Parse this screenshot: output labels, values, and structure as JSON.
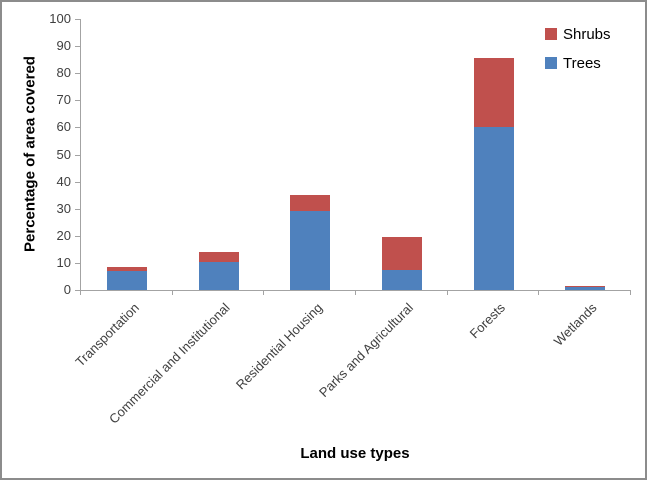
{
  "chart_data": {
    "type": "bar",
    "stacked": true,
    "title": "",
    "categories": [
      "Transportation",
      "Commercial and Institutional",
      "Residential Housing",
      "Parks and Agricultural",
      "Forests",
      "Wetlands"
    ],
    "series": [
      {
        "name": "Trees",
        "color": "#4F81BD",
        "values": [
          7,
          10.5,
          29,
          7.5,
          60,
          1.2
        ]
      },
      {
        "name": "Shrubs",
        "color": "#C0504D",
        "values": [
          1.5,
          3.5,
          6,
          12,
          25.5,
          0.3
        ]
      }
    ],
    "xlabel": "Land use types",
    "ylabel": "Percentage of area covered",
    "ylim": [
      0,
      100
    ],
    "ytick_step": 10,
    "ytick_labels": [
      "0",
      "10",
      "20",
      "30",
      "40",
      "50",
      "60",
      "70",
      "80",
      "90",
      "100"
    ],
    "grid": false,
    "legend": {
      "position": "top-right",
      "entries": [
        {
          "label": "Shrubs",
          "color": "#C0504D"
        },
        {
          "label": "Trees",
          "color": "#4F81BD"
        }
      ]
    }
  }
}
